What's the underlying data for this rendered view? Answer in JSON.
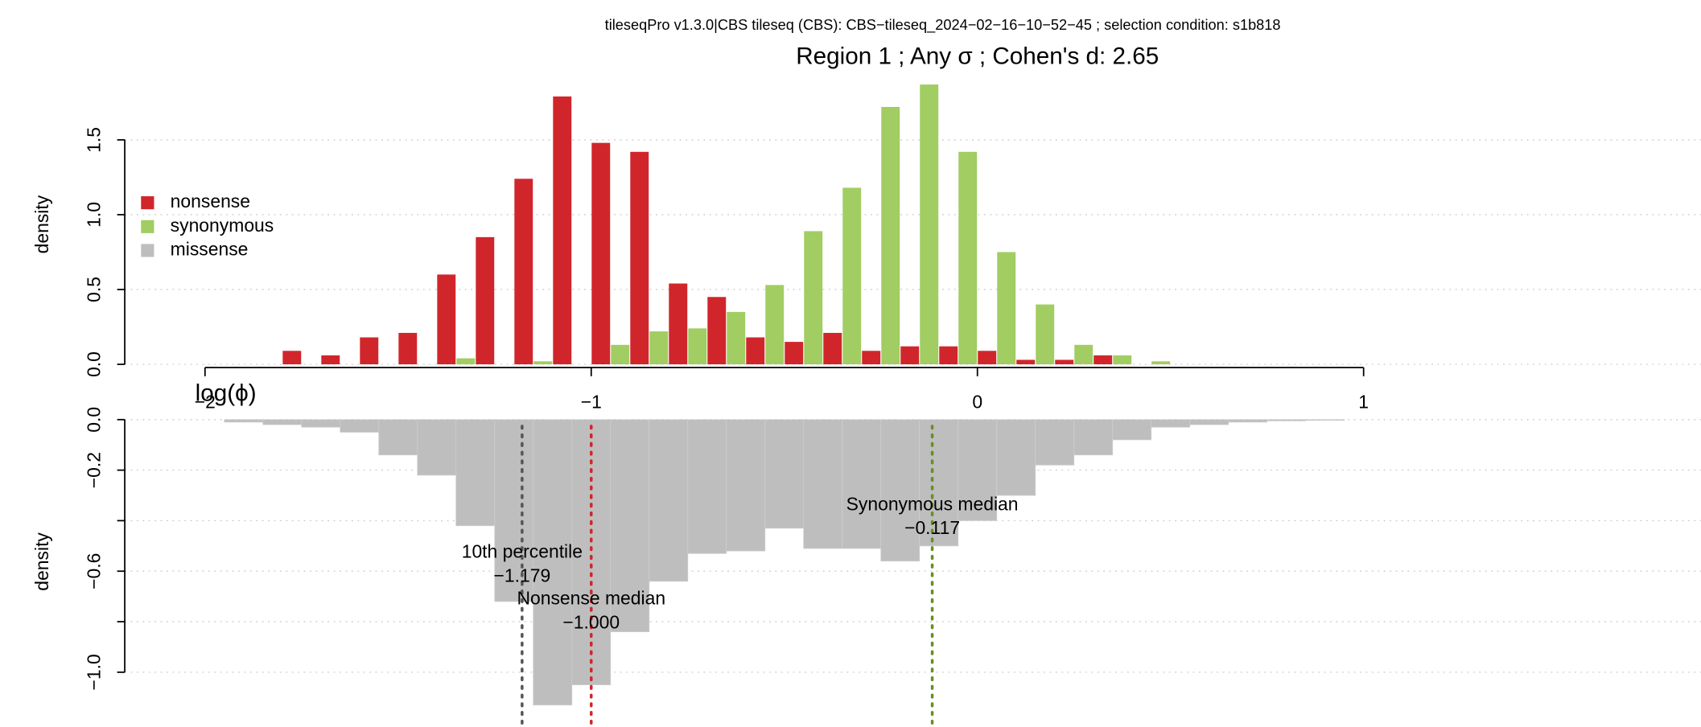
{
  "chart_data": [
    {
      "type": "histogram",
      "subtitle": "tileseqPro v1.3.0|CBS tileseq (CBS): CBS−tileseq_2024−02−16−10−52−45 ; selection condition: s1b818",
      "title": "Region 1 ; Any σ ; Cohen's d:  2.65",
      "x_label": "log(ϕ)",
      "y_label": "density",
      "bins": [
        -1.8,
        -1.7,
        -1.6,
        -1.5,
        -1.4,
        -1.3,
        -1.2,
        -1.1,
        -1.0,
        -0.9,
        -0.8,
        -0.7,
        -0.6,
        -0.5,
        -0.4,
        -0.3,
        -0.2,
        -0.1,
        0.0,
        0.1,
        0.2,
        0.3,
        0.4,
        0.5
      ],
      "series": [
        {
          "name": "nonsense",
          "color": "#d0262b",
          "values": [
            0.09,
            0.06,
            0.18,
            0.21,
            0.6,
            0.85,
            1.24,
            1.79,
            1.48,
            1.42,
            0.54,
            0.45,
            0.18,
            0.15,
            0.21,
            0.09,
            0.12,
            0.12,
            0.09,
            0.03,
            0.03,
            0.06,
            0
          ]
        },
        {
          "name": "synonymous",
          "color": "#a1cd62",
          "values": [
            0,
            0,
            0,
            0,
            0.04,
            0,
            0.02,
            0,
            0.13,
            0.22,
            0.24,
            0.35,
            0.53,
            0.89,
            1.18,
            1.72,
            1.87,
            1.42,
            0.75,
            0.4,
            0.13,
            0.06,
            0.02
          ]
        }
      ],
      "xlim": [
        -2.2,
        1.87
      ],
      "xticks": [
        {
          "value": -2,
          "label": "−2"
        },
        {
          "value": -1,
          "label": "−1"
        },
        0,
        1
      ],
      "ylim": [
        0,
        1.9
      ],
      "yticks": [
        {
          "value": 0,
          "label": "0.0"
        },
        {
          "value": 0.5,
          "label": "0.5"
        },
        {
          "value": 1,
          "label": "1.0"
        },
        {
          "value": 1.5,
          "label": "1.5"
        }
      ],
      "grid": true,
      "legend": "left"
    },
    {
      "type": "histogram",
      "y_label": "density",
      "bins": [
        -1.95,
        -1.85,
        -1.75,
        -1.65,
        -1.55,
        -1.45,
        -1.35,
        -1.25,
        -1.15,
        -1.05,
        -0.95,
        -0.85,
        -0.75,
        -0.65,
        -0.55,
        -0.45,
        -0.35,
        -0.25,
        -0.15,
        -0.05,
        0.05,
        0.15,
        0.25,
        0.35,
        0.45,
        0.55,
        0.65,
        0.75,
        0.85,
        0.95
      ],
      "series": [
        {
          "name": "missense",
          "color": "#bebebe",
          "values": [
            -0.01,
            -0.02,
            -0.03,
            -0.05,
            -0.14,
            -0.22,
            -0.42,
            -0.72,
            -1.13,
            -1.05,
            -0.84,
            -0.64,
            -0.53,
            -0.52,
            -0.43,
            -0.51,
            -0.51,
            -0.56,
            -0.5,
            -0.4,
            -0.3,
            -0.18,
            -0.14,
            -0.08,
            -0.03,
            -0.02,
            -0.01,
            -0.005,
            -0.003
          ]
        }
      ],
      "xlim": [
        -2.2,
        1.87
      ],
      "ylim": [
        -1.21,
        0
      ],
      "yticks": [
        {
          "value": 0,
          "label": "0.0"
        },
        {
          "value": -0.2,
          "label": "−0.2"
        },
        {
          "value": -0.4,
          "label": null
        },
        {
          "value": -0.6,
          "label": "−0.6"
        },
        {
          "value": -0.8,
          "label": null
        },
        {
          "value": -1.0,
          "label": "−1.0"
        }
      ],
      "grid": true,
      "annotations": [
        {
          "x": -1.179,
          "text": "10th percentile",
          "value_label": "−1.179",
          "color": "#555555"
        },
        {
          "x": -1.0,
          "text": "Nonsense median",
          "value_label": "−1.000",
          "color": "#d0262b"
        },
        {
          "x": -0.117,
          "text": "Synonymous median",
          "value_label": "−0.117",
          "color": "#6b8e23"
        }
      ]
    }
  ]
}
